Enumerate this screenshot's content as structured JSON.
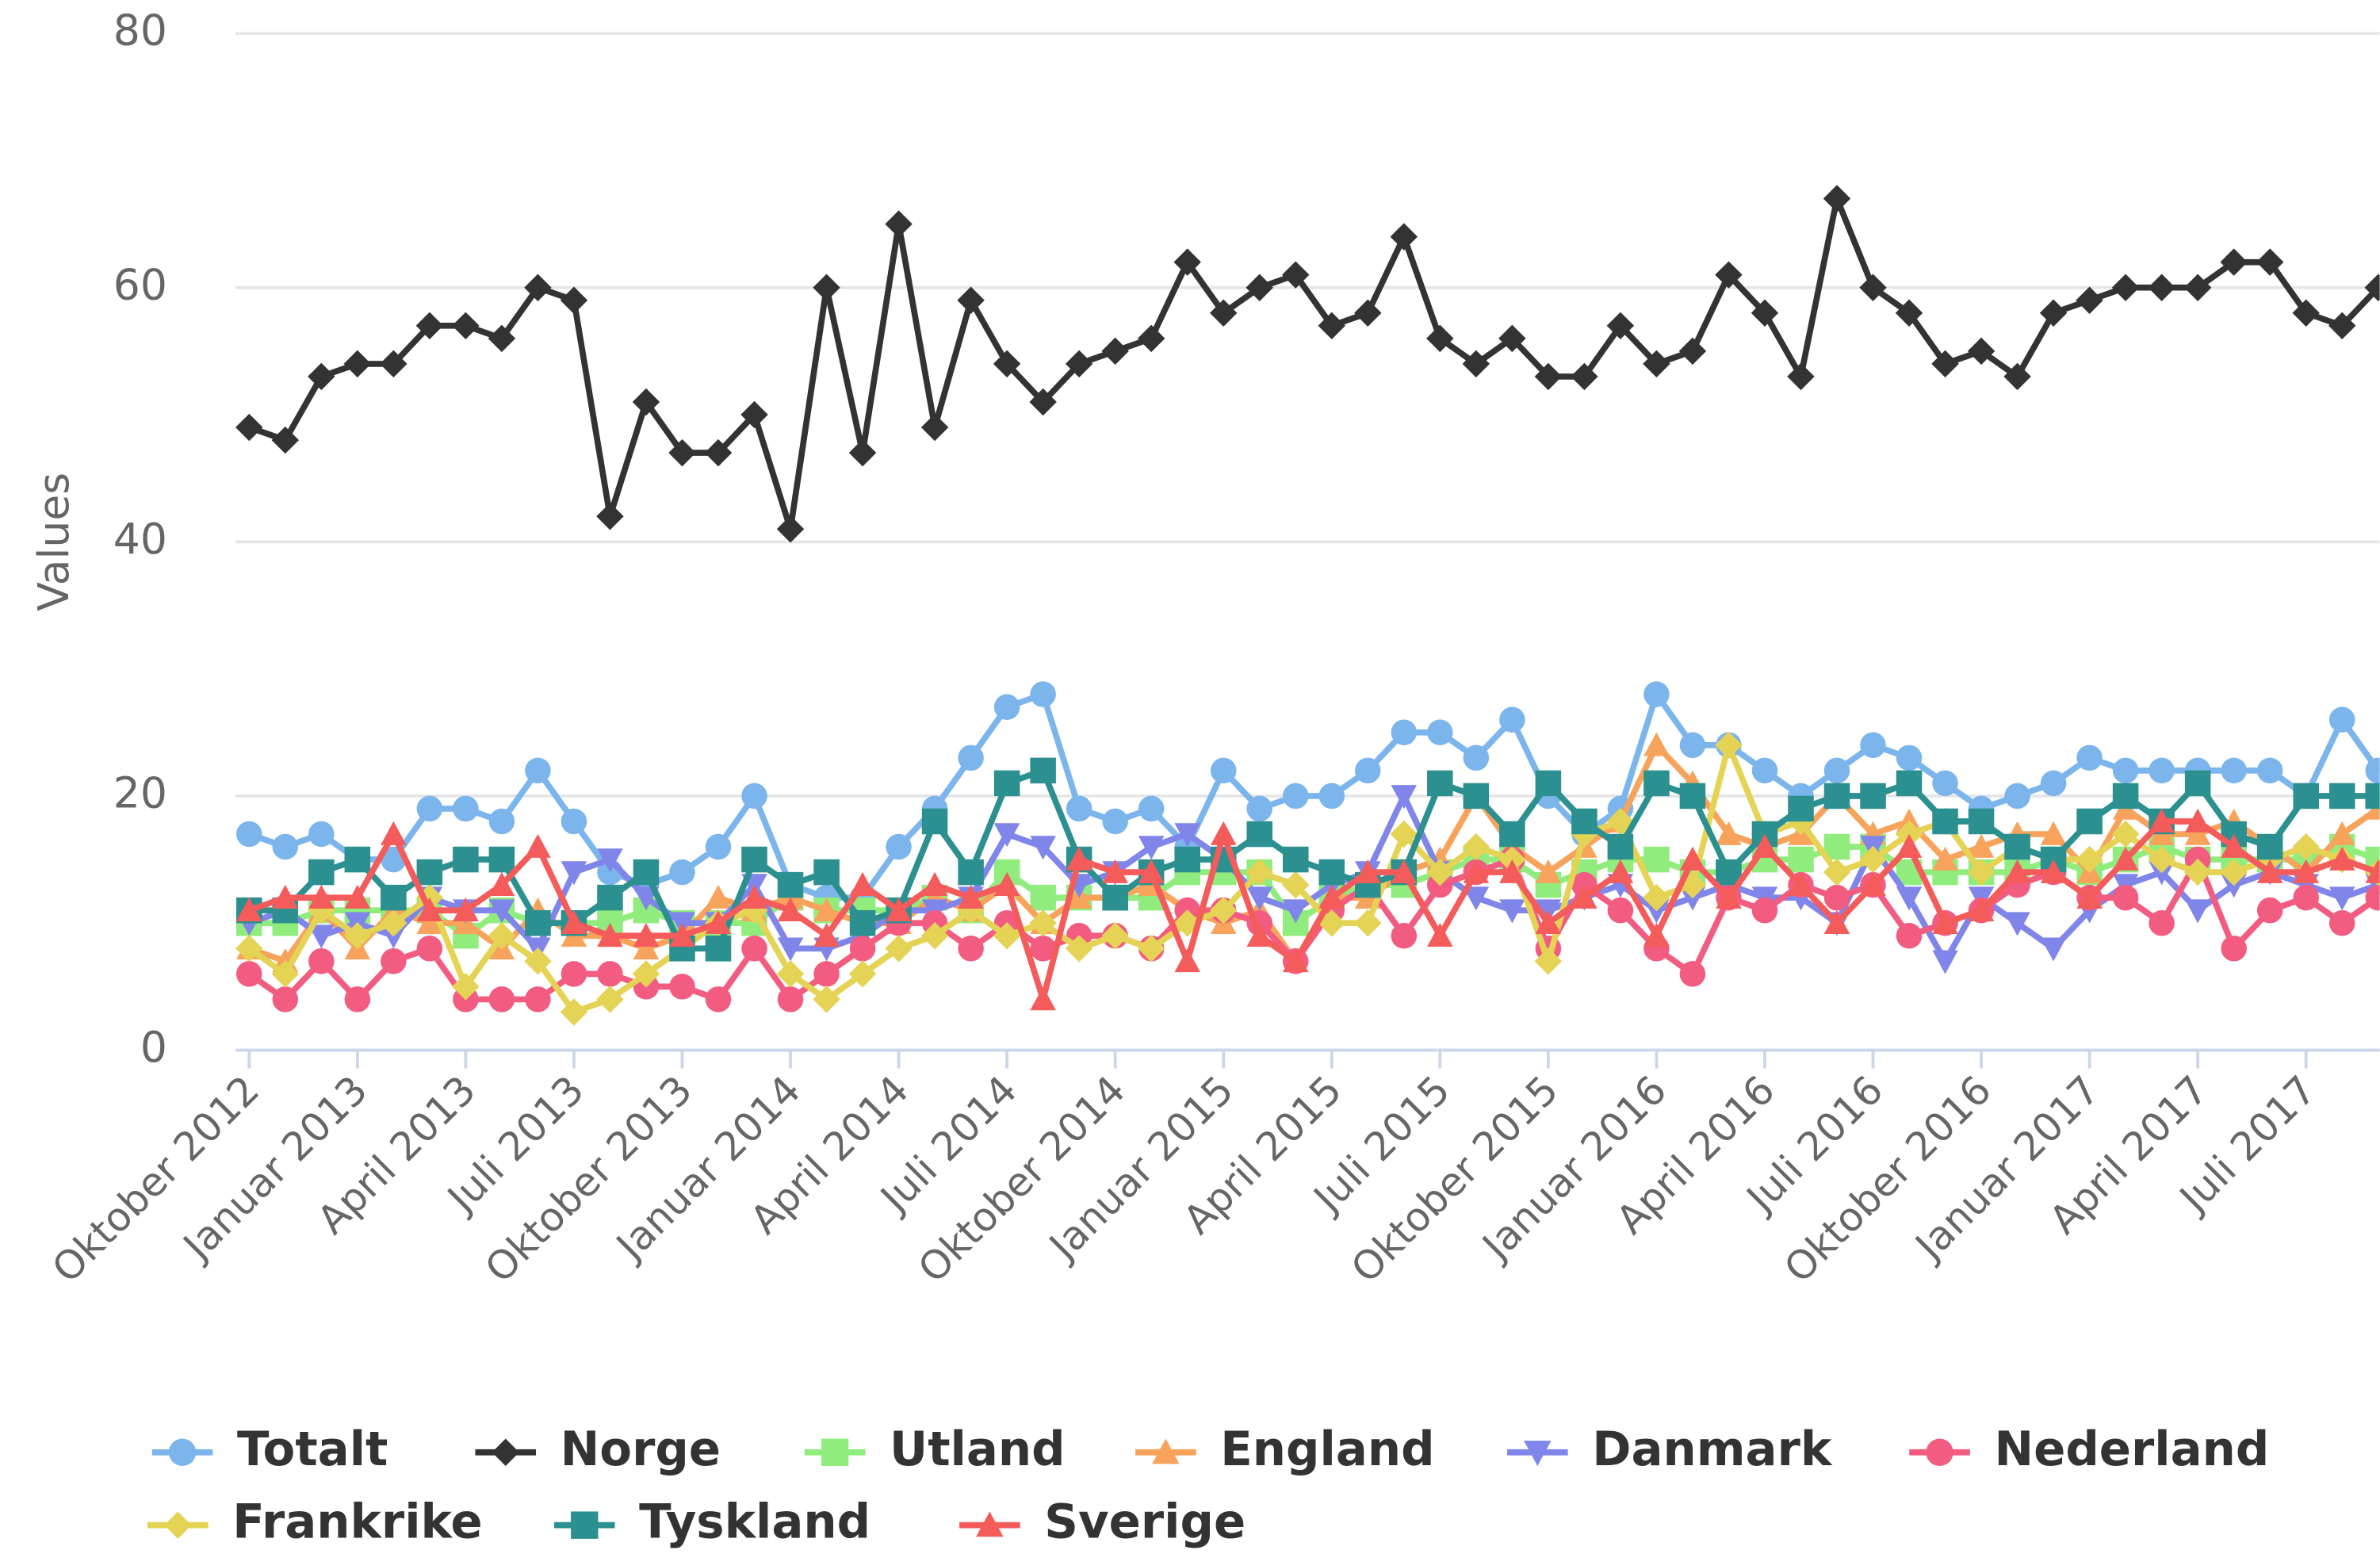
{
  "chart_data": {
    "type": "line",
    "y_axis_title": "Values",
    "ylim": [
      0,
      80
    ],
    "yticks": [
      0,
      20,
      40,
      60,
      80
    ],
    "grid": true,
    "categories": [
      "Oktober 2012",
      null,
      null,
      "Januar 2013",
      null,
      null,
      "April 2013",
      null,
      null,
      "Juli 2013",
      null,
      null,
      "Oktober 2013",
      null,
      null,
      "Januar 2014",
      null,
      null,
      "April 2014",
      null,
      null,
      "Juli 2014",
      null,
      null,
      "Oktober 2014",
      null,
      null,
      "Januar 2015",
      null,
      null,
      "April 2015",
      null,
      null,
      "Juli 2015",
      null,
      null,
      "Oktober 2015",
      null,
      null,
      "Januar 2016",
      null,
      null,
      "April 2016",
      null,
      null,
      "Juli 2016",
      null,
      null,
      "Oktober 2016",
      null,
      null,
      "Januar 2017",
      null,
      null,
      "April 2017",
      null,
      null,
      "Juli 2017",
      null,
      null
    ],
    "series": [
      {
        "name": "Totalt",
        "color": "#7cb5ec",
        "marker": "circle",
        "values": [
          17,
          16,
          17,
          15,
          15,
          19,
          19,
          18,
          22,
          18,
          14,
          13,
          14,
          16,
          20,
          13,
          12,
          12,
          16,
          19,
          23,
          27,
          28,
          19,
          18,
          19,
          16,
          22,
          19,
          20,
          20,
          22,
          25,
          25,
          23,
          26,
          20,
          17,
          19,
          28,
          24,
          24,
          22,
          20,
          22,
          24,
          23,
          21,
          19,
          20,
          21,
          23,
          22,
          22,
          22,
          22,
          22,
          20,
          26,
          22
        ]
      },
      {
        "name": "Norge",
        "color": "#333333",
        "marker": "diamond",
        "values": [
          49,
          48,
          53,
          54,
          54,
          57,
          57,
          56,
          60,
          59,
          42,
          51,
          47,
          47,
          50,
          41,
          60,
          47,
          65,
          49,
          59,
          54,
          51,
          54,
          55,
          56,
          62,
          58,
          60,
          61,
          57,
          58,
          64,
          56,
          54,
          56,
          53,
          53,
          57,
          54,
          55,
          61,
          58,
          53,
          67,
          60,
          58,
          54,
          55,
          53,
          58,
          59,
          60,
          60,
          60,
          62,
          62,
          58,
          57,
          60
        ]
      },
      {
        "name": "Utland",
        "color": "#90ed7d",
        "marker": "square",
        "values": [
          10,
          10,
          11,
          11,
          11,
          11,
          9,
          11,
          10,
          10,
          10,
          11,
          10,
          10,
          10,
          12,
          11,
          11,
          11,
          12,
          11,
          14,
          12,
          12,
          12,
          12,
          14,
          14,
          14,
          10,
          12,
          13,
          13,
          14,
          15,
          15,
          13,
          14,
          15,
          15,
          14,
          14,
          15,
          15,
          16,
          16,
          14,
          14,
          14,
          14,
          15,
          14,
          15,
          16,
          15,
          15,
          15,
          15,
          16,
          15
        ]
      },
      {
        "name": "England",
        "color": "#f7a35c",
        "marker": "triangle",
        "values": [
          8,
          7,
          11,
          8,
          11,
          10,
          10,
          8,
          11,
          9,
          9,
          8,
          9,
          12,
          11,
          12,
          11,
          10,
          10,
          12,
          11,
          13,
          10,
          12,
          12,
          13,
          11,
          10,
          11,
          7,
          12,
          12,
          14,
          15,
          20,
          16,
          14,
          16,
          18,
          24,
          21,
          17,
          16,
          17,
          20,
          17,
          18,
          15,
          16,
          17,
          17,
          14,
          19,
          17,
          17,
          18,
          16,
          14,
          17,
          19
        ]
      },
      {
        "name": "Danmark",
        "color": "#8085e9",
        "marker": "triangle-down",
        "values": [
          10,
          11,
          9,
          10,
          9,
          12,
          11,
          11,
          8,
          14,
          15,
          12,
          10,
          10,
          13,
          8,
          8,
          9,
          11,
          11,
          12,
          17,
          16,
          13,
          14,
          16,
          17,
          15,
          12,
          11,
          13,
          14,
          20,
          14,
          12,
          11,
          11,
          12,
          13,
          11,
          12,
          13,
          12,
          12,
          10,
          16,
          12,
          7,
          12,
          10,
          8,
          11,
          13,
          14,
          11,
          13,
          14,
          13,
          12,
          13
        ]
      },
      {
        "name": "Nederland",
        "color": "#f15c80",
        "marker": "circle",
        "values": [
          6,
          4,
          7,
          4,
          7,
          8,
          4,
          4,
          4,
          6,
          6,
          5,
          5,
          4,
          8,
          4,
          6,
          8,
          10,
          10,
          8,
          10,
          8,
          9,
          9,
          8,
          11,
          11,
          10,
          7,
          11,
          13,
          9,
          13,
          14,
          15,
          8,
          13,
          11,
          8,
          6,
          12,
          11,
          13,
          12,
          13,
          9,
          10,
          11,
          13,
          14,
          12,
          12,
          10,
          15,
          8,
          11,
          12,
          10,
          12
        ]
      },
      {
        "name": "Frankrike",
        "color": "#e4d354",
        "marker": "diamond",
        "values": [
          8,
          6,
          11,
          9,
          10,
          12,
          5,
          9,
          7,
          3,
          4,
          6,
          8,
          10,
          11,
          6,
          4,
          6,
          8,
          9,
          11,
          9,
          10,
          8,
          9,
          8,
          10,
          11,
          14,
          13,
          10,
          10,
          17,
          14,
          16,
          15,
          7,
          17,
          18,
          12,
          13,
          24,
          17,
          18,
          14,
          15,
          17,
          18,
          14,
          16,
          15,
          15,
          17,
          15,
          14,
          14,
          15,
          16,
          15,
          14
        ]
      },
      {
        "name": "Tyskland",
        "color": "#2b908f",
        "marker": "square",
        "values": [
          11,
          11,
          14,
          15,
          12,
          14,
          15,
          15,
          10,
          10,
          12,
          14,
          8,
          8,
          15,
          13,
          14,
          10,
          11,
          18,
          14,
          21,
          22,
          15,
          12,
          14,
          15,
          15,
          17,
          15,
          14,
          13,
          14,
          21,
          20,
          17,
          21,
          18,
          16,
          21,
          20,
          14,
          17,
          19,
          20,
          20,
          21,
          18,
          18,
          16,
          15,
          18,
          20,
          18,
          21,
          17,
          16,
          20,
          20,
          20
        ]
      },
      {
        "name": "Sverige",
        "color": "#f45b5b",
        "marker": "triangle",
        "values": [
          11,
          12,
          12,
          12,
          17,
          11,
          11,
          13,
          16,
          10,
          9,
          9,
          9,
          10,
          12,
          11,
          9,
          13,
          11,
          13,
          12,
          13,
          4,
          15,
          14,
          14,
          7,
          17,
          9,
          7,
          12,
          14,
          14,
          9,
          14,
          14,
          10,
          12,
          14,
          9,
          15,
          12,
          16,
          13,
          10,
          13,
          16,
          10,
          11,
          14,
          14,
          12,
          15,
          18,
          18,
          16,
          14,
          14,
          15,
          14
        ]
      }
    ]
  }
}
